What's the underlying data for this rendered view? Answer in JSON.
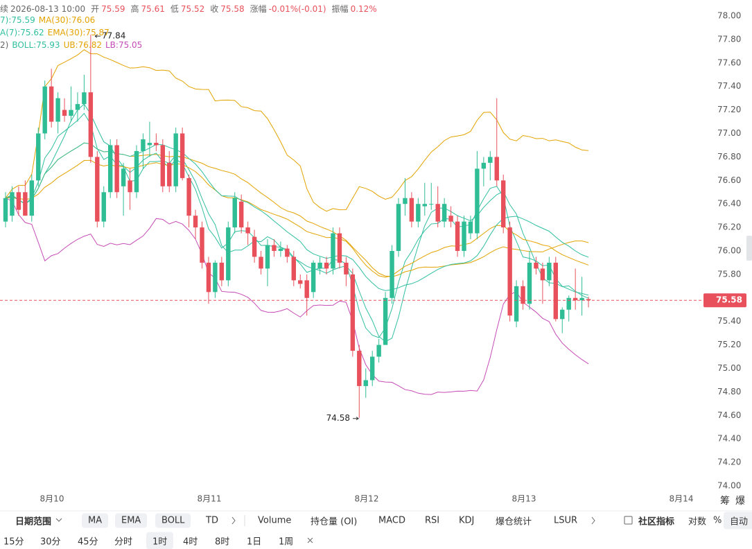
{
  "header": {
    "items": [
      "续",
      "2026-08-13 10:00",
      "开",
      "75.59",
      "高",
      "75.61",
      "低",
      "75.52",
      "收",
      "75.58",
      "涨幅",
      "-0.01%(-0.01)",
      "振幅",
      "0.12%"
    ]
  },
  "indicator_legend": [
    [
      {
        "text": "7):75.59",
        "color": "#2fbf9f"
      },
      {
        "text": "MA(30):76.06",
        "color": "#e3a300"
      }
    ],
    [
      {
        "text": "A(7):75.62",
        "color": "#2fbf9f"
      },
      {
        "text": "EMA(30):75.87",
        "color": "#e3a300"
      }
    ],
    [
      {
        "text": "2)",
        "color": "#666666"
      },
      {
        "text": "BOLL:75.93",
        "color": "#2fbf9f"
      },
      {
        "text": "UB:76.82",
        "color": "#e3a300"
      },
      {
        "text": "LB:75.05",
        "color": "#c64bb6"
      }
    ]
  ],
  "chart_data": {
    "type": "candlestick",
    "up_color": "#2ebd95",
    "down_color": "#e8505b",
    "open": [
      76.25,
      76.3,
      76.5,
      76.5,
      76.3,
      76.6,
      77.0,
      77.4,
      77.1,
      77.2,
      77.15,
      77.2,
      77.25,
      77.35,
      76.8,
      76.25,
      76.5,
      76.9,
      76.55,
      76.6,
      76.5,
      76.85,
      76.9,
      76.92,
      76.9,
      76.75,
      76.55,
      77.0,
      76.62,
      76.3,
      76.2,
      75.9,
      75.65,
      75.9,
      75.75,
      76.2,
      76.42,
      76.2,
      76.12,
      75.95,
      75.85,
      76.05,
      76.0,
      76.02,
      75.95,
      75.75,
      75.75,
      75.65,
      75.85,
      75.9,
      75.85,
      76.15,
      75.9,
      75.8,
      75.15,
      74.85,
      74.9,
      75.1,
      75.2,
      75.6,
      76.0,
      76.4,
      76.45,
      76.25,
      76.38,
      76.4,
      76.4,
      76.25,
      76.3,
      76.25,
      76.0,
      76.15,
      76.15,
      76.7,
      76.75,
      76.8,
      76.6,
      76.2,
      75.4,
      75.7,
      75.55,
      75.9,
      75.85,
      75.75,
      75.9,
      75.42,
      75.5,
      75.6,
      75.58,
      75.59
    ],
    "high": [
      76.5,
      76.55,
      76.55,
      76.6,
      76.65,
      77.05,
      77.45,
      77.55,
      77.35,
      77.3,
      77.4,
      77.35,
      77.5,
      77.84,
      76.85,
      76.55,
      76.95,
      76.95,
      76.75,
      76.7,
      76.9,
      77.0,
      77.1,
      77.0,
      76.95,
      76.85,
      77.05,
      77.05,
      76.65,
      76.35,
      76.25,
      75.95,
      75.92,
      75.95,
      76.25,
      76.5,
      76.48,
      76.25,
      76.18,
      76.0,
      76.1,
      76.1,
      76.08,
      76.05,
      76.0,
      75.8,
      75.8,
      75.92,
      75.95,
      75.95,
      76.2,
      76.2,
      75.95,
      75.85,
      75.2,
      75.0,
      75.15,
      75.25,
      75.65,
      76.05,
      76.45,
      76.62,
      76.5,
      76.45,
      76.58,
      76.58,
      76.55,
      76.45,
      76.38,
      76.3,
      76.3,
      76.3,
      76.85,
      76.8,
      76.85,
      77.3,
      76.65,
      76.25,
      75.75,
      75.75,
      76.0,
      75.95,
      75.9,
      75.95,
      75.95,
      75.52,
      75.62,
      75.85,
      75.78,
      75.61
    ],
    "low": [
      76.2,
      76.25,
      76.3,
      76.3,
      76.25,
      76.55,
      76.95,
      77.05,
      77.0,
      77.1,
      77.1,
      77.1,
      77.2,
      76.75,
      76.2,
      76.2,
      76.45,
      76.45,
      76.3,
      76.35,
      76.45,
      76.7,
      76.8,
      76.85,
      76.5,
      76.5,
      76.5,
      76.6,
      76.2,
      76.1,
      75.85,
      75.55,
      75.6,
      75.7,
      75.7,
      76.15,
      76.15,
      76.05,
      75.9,
      75.8,
      75.7,
      75.95,
      75.95,
      75.9,
      75.7,
      75.68,
      75.45,
      75.6,
      75.8,
      75.8,
      75.8,
      75.85,
      75.7,
      75.1,
      74.58,
      74.75,
      74.85,
      75.05,
      75.2,
      75.55,
      75.95,
      76.3,
      76.2,
      76.2,
      76.3,
      76.35,
      76.2,
      76.2,
      76.2,
      75.95,
      75.95,
      76.1,
      76.1,
      76.55,
      76.6,
      76.55,
      76.15,
      75.4,
      75.35,
      75.5,
      75.5,
      75.8,
      75.55,
      75.7,
      75.4,
      75.3,
      75.4,
      75.5,
      75.45,
      75.52
    ],
    "close": [
      76.45,
      76.5,
      76.35,
      76.3,
      76.6,
      77.0,
      77.4,
      77.1,
      77.3,
      77.15,
      77.2,
      77.25,
      77.35,
      76.8,
      76.25,
      76.5,
      76.9,
      76.5,
      76.7,
      76.5,
      76.85,
      76.95,
      76.92,
      76.9,
      76.55,
      76.55,
      77.0,
      76.62,
      76.3,
      76.2,
      75.9,
      75.65,
      75.9,
      75.75,
      76.2,
      76.45,
      76.2,
      76.15,
      75.95,
      75.85,
      76.05,
      76.0,
      76.02,
      75.95,
      75.75,
      75.72,
      75.6,
      75.9,
      75.9,
      75.85,
      76.15,
      75.9,
      75.8,
      75.15,
      74.85,
      74.9,
      75.1,
      75.2,
      75.6,
      76.0,
      76.4,
      76.45,
      76.25,
      76.4,
      76.4,
      76.4,
      76.25,
      76.4,
      76.25,
      76.0,
      76.25,
      76.25,
      76.7,
      76.75,
      76.8,
      76.6,
      76.2,
      75.45,
      75.7,
      75.55,
      75.9,
      75.85,
      75.75,
      75.9,
      75.42,
      75.5,
      75.6,
      75.58,
      75.6,
      75.58
    ],
    "ylim": [
      74,
      78
    ],
    "yticks": [
      {
        "value": 74,
        "label": "74.00"
      },
      {
        "value": 74.2,
        "label": "74.20"
      },
      {
        "value": 74.4,
        "label": "74.40"
      },
      {
        "value": 74.6,
        "label": "74.60"
      },
      {
        "value": 74.8,
        "label": "74.80"
      },
      {
        "value": 75,
        "label": "75.00"
      },
      {
        "value": 75.2,
        "label": "75.20"
      },
      {
        "value": 75.4,
        "label": "75.40"
      },
      {
        "value": 75.6,
        "label": "75.60"
      },
      {
        "value": 75.8,
        "label": "75.80"
      },
      {
        "value": 76,
        "label": "76.00"
      },
      {
        "value": 76.2,
        "label": "76.20"
      },
      {
        "value": 76.4,
        "label": "76.40"
      },
      {
        "value": 76.6,
        "label": "76.60"
      },
      {
        "value": 76.8,
        "label": "76.80"
      },
      {
        "value": 77,
        "label": "77.00"
      },
      {
        "value": 77.2,
        "label": "77.20"
      },
      {
        "value": 77.4,
        "label": "77.40"
      },
      {
        "value": 77.6,
        "label": "77.60"
      },
      {
        "value": 77.8,
        "label": "77.80"
      },
      {
        "value": 78,
        "label": "78.00"
      }
    ],
    "xticks": [
      "8月10",
      "8月11",
      "8月12",
      "8月13",
      "8月14"
    ],
    "last_price": {
      "value": 75.58,
      "label": "75.58"
    },
    "annotations": [
      {
        "value": 77.84,
        "label": "77.84"
      },
      {
        "value": 74.58,
        "label": "74.58"
      }
    ]
  },
  "side_tabs": [
    "筹",
    "爆"
  ],
  "toolbar": {
    "row1": [
      "日期范围",
      "MA",
      "EMA",
      "BOLL",
      "TD",
      "Volume",
      "持仓量 (OI)",
      "MACD",
      "RSI",
      "KDJ",
      "爆仓统计",
      "LSUR",
      "社区指标",
      "对数",
      "%",
      "自动"
    ],
    "row2": [
      "15分",
      "30分",
      "45分",
      "分时",
      "1时",
      "4时",
      "8时",
      "1日",
      "1周"
    ]
  }
}
